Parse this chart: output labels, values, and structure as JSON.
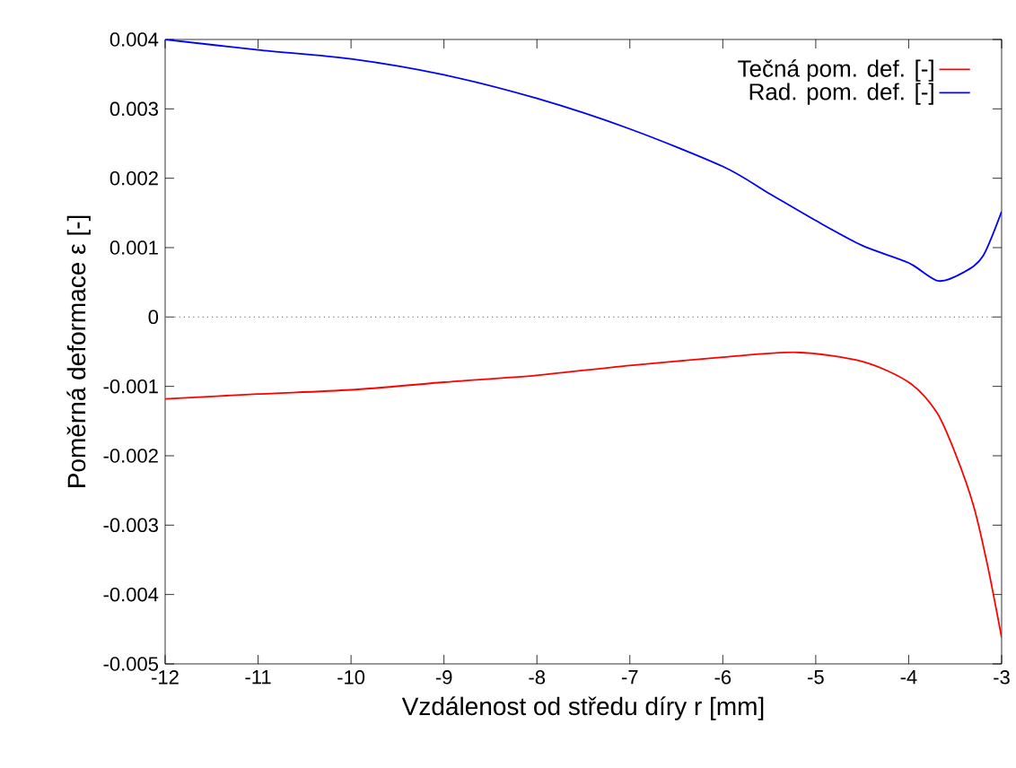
{
  "chart_data": {
    "type": "line",
    "xlabel": "Vzdálenost od středu díry r [mm]",
    "ylabel": "Poměrná deformace ε [-]",
    "xlim": [
      -12,
      -3
    ],
    "ylim": [
      -0.005,
      0.004
    ],
    "xticks": [
      -12,
      -11,
      -10,
      -9,
      -8,
      -7,
      -6,
      -5,
      -4,
      -3
    ],
    "yticks": [
      -0.005,
      -0.004,
      -0.003,
      -0.002,
      -0.001,
      0,
      0.001,
      0.002,
      0.003,
      0.004
    ],
    "legend": "top right",
    "grid": false,
    "marker": "none",
    "line_style": "solid",
    "ref_lines": [
      {
        "axis": "y",
        "value": 0,
        "color": "#808080",
        "line_style": "dotted"
      }
    ],
    "series": [
      {
        "name": "Tečná pom. def. [-]",
        "color": "#ff0000",
        "x": [
          -12,
          -11,
          -10,
          -9,
          -8,
          -7,
          -6,
          -5.2,
          -4.5,
          -4,
          -3.7,
          -3.5,
          -3.3,
          -3.15,
          -3
        ],
        "values": [
          -0.00118,
          -0.00111,
          -0.00105,
          -0.00094,
          -0.00084,
          -0.0007,
          -0.00058,
          -0.00051,
          -0.00064,
          -0.00094,
          -0.00137,
          -0.00196,
          -0.00273,
          -0.00359,
          -0.00462
        ]
      },
      {
        "name": "Rad. pom. def. [-]",
        "color": "#0000ff",
        "x": [
          -12,
          -11,
          -10,
          -9,
          -8,
          -7,
          -6,
          -5.5,
          -5,
          -4.5,
          -4,
          -3.68,
          -3.4,
          -3.2,
          -3
        ],
        "values": [
          0.004,
          0.00385,
          0.00372,
          0.00349,
          0.00315,
          0.00271,
          0.00217,
          0.00178,
          0.00139,
          0.00103,
          0.00078,
          0.00052,
          0.00065,
          0.00088,
          0.00152
        ]
      }
    ]
  }
}
